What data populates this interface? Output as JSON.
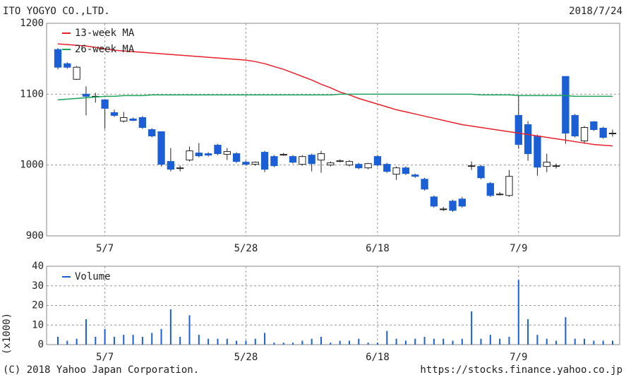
{
  "header": {
    "title": "ITO YOGYO CO.,LTD.",
    "date": "2018/7/24"
  },
  "footer": {
    "copyright": "(C) 2018 Yahoo Japan Corporation.",
    "url": "https://stocks.finance.yahoo.co.jp"
  },
  "chart_data": [
    {
      "type": "candlestick",
      "categories": [
        null,
        null,
        null,
        null,
        null,
        "5/7",
        null,
        null,
        null,
        null,
        null,
        null,
        null,
        null,
        null,
        null,
        null,
        null,
        null,
        null,
        "5/28",
        null,
        null,
        null,
        null,
        null,
        null,
        null,
        null,
        null,
        null,
        null,
        null,
        null,
        "6/18",
        null,
        null,
        null,
        null,
        null,
        null,
        null,
        null,
        null,
        null,
        null,
        null,
        null,
        null,
        "7/9",
        null,
        null,
        null,
        null,
        null,
        null,
        null,
        null,
        null,
        null
      ],
      "open": [
        1163,
        1143,
        1121,
        1100,
        1096,
        1092,
        1074,
        1062,
        1065,
        1067,
        1050,
        1047,
        1005,
        996,
        1007,
        1017,
        1016,
        1028,
        1015,
        1016,
        1004,
        1001,
        1018,
        1012,
        1015,
        1012,
        1001,
        1014,
        1007,
        1000,
        1006,
        1000,
        1001,
        996,
        1012,
        1001,
        987,
        996,
        986,
        980,
        955,
        938,
        949,
        952,
        999,
        998,
        974,
        959,
        957,
        1070,
        1057,
        1041,
        998,
        999,
        1125,
        1070,
        1034,
        1061,
        1052,
        1045
      ],
      "high": [
        1165,
        1145,
        1140,
        1111,
        1102,
        1093,
        1078,
        1075,
        1067,
        1069,
        1052,
        1047,
        1024,
        999,
        1026,
        1031,
        1018,
        1030,
        1024,
        1018,
        1006,
        1005,
        1020,
        1014,
        1017,
        1014,
        1014,
        1016,
        1020,
        1005,
        1008,
        1007,
        1003,
        1003,
        1014,
        1003,
        998,
        998,
        988,
        982,
        957,
        941,
        951,
        955,
        1005,
        1000,
        976,
        962,
        993,
        1099,
        1062,
        1043,
        1016,
        1002,
        1125,
        1072,
        1055,
        1062,
        1054,
        1050
      ],
      "low": [
        1135,
        1136,
        1120,
        1070,
        1088,
        1051,
        1068,
        1060,
        1062,
        1051,
        1039,
        998,
        991,
        991,
        1005,
        1011,
        1012,
        1014,
        1007,
        1003,
        999,
        999,
        990,
        997,
        1013,
        1002,
        999,
        991,
        989,
        998,
        1004,
        998,
        994,
        994,
        998,
        989,
        979,
        986,
        982,
        964,
        940,
        935,
        934,
        940,
        993,
        980,
        955,
        957,
        955,
        1023,
        1006,
        985,
        990,
        995,
        1030,
        1039,
        1030,
        1048,
        1037,
        1040
      ],
      "close": [
        1138,
        1138,
        1138,
        1097,
        1097,
        1080,
        1070,
        1067,
        1063,
        1053,
        1041,
        1001,
        994,
        996,
        1020,
        1013,
        1014,
        1016,
        1019,
        1005,
        1001,
        1004,
        994,
        999,
        1015,
        1004,
        1012,
        1002,
        1016,
        1003,
        1006,
        1005,
        996,
        1002,
        1000,
        991,
        996,
        988,
        984,
        966,
        942,
        938,
        936,
        942,
        999,
        982,
        957,
        959,
        984,
        1029,
        1016,
        997,
        1004,
        999,
        1045,
        1041,
        1053,
        1050,
        1039,
        1045
      ],
      "up_color": "#ffffff",
      "down_color": "#1a5fd6",
      "series": [
        {
          "name": "13-week MA",
          "color": "#e8202a",
          "values": [
            1171,
            1170,
            1169,
            1168,
            1166,
            1164,
            1162,
            1161,
            1160,
            1159,
            1158,
            1157,
            1156,
            1155,
            1154,
            1153,
            1152,
            1151,
            1150,
            1149,
            1148,
            1146,
            1143,
            1139,
            1135,
            1130,
            1125,
            1120,
            1114,
            1109,
            1103,
            1099,
            1094,
            1090,
            1086,
            1082,
            1078,
            1075,
            1072,
            1069,
            1066,
            1063,
            1060,
            1057,
            1055,
            1053,
            1051,
            1049,
            1047,
            1045,
            1043,
            1041,
            1039,
            1037,
            1035,
            1033,
            1031,
            1029,
            1028,
            1027
          ]
        },
        {
          "name": "26-week MA",
          "color": "#1aa35a",
          "values": [
            1092,
            1093,
            1094,
            1095,
            1096,
            1097,
            1097,
            1098,
            1098,
            1098,
            1099,
            1099,
            1099,
            1099,
            1099,
            1099,
            1099,
            1099,
            1099,
            1099,
            1099,
            1099,
            1099,
            1099,
            1099,
            1099,
            1099,
            1099,
            1099,
            1099,
            1100,
            1100,
            1100,
            1100,
            1100,
            1100,
            1100,
            1100,
            1100,
            1100,
            1100,
            1100,
            1100,
            1100,
            1100,
            1099,
            1099,
            1099,
            1099,
            1098,
            1098,
            1098,
            1098,
            1098,
            1098,
            1097,
            1097,
            1097,
            1097,
            1097
          ]
        }
      ],
      "ylim": [
        900,
        1200
      ],
      "yticks": [
        900,
        1000,
        1100,
        1200
      ],
      "grid": true
    },
    {
      "type": "bar",
      "categories": [
        null,
        null,
        null,
        null,
        null,
        "5/7",
        null,
        null,
        null,
        null,
        null,
        null,
        null,
        null,
        null,
        null,
        null,
        null,
        null,
        null,
        "5/28",
        null,
        null,
        null,
        null,
        null,
        null,
        null,
        null,
        null,
        null,
        null,
        null,
        null,
        "6/18",
        null,
        null,
        null,
        null,
        null,
        null,
        null,
        null,
        null,
        null,
        null,
        null,
        null,
        null,
        "7/9",
        null,
        null,
        null,
        null,
        null,
        null,
        null,
        null,
        null,
        null
      ],
      "y_label": "(x1000)",
      "series": [
        {
          "name": "Volume",
          "color": "#1a5fd6",
          "values": [
            4,
            2,
            3,
            13,
            4,
            8,
            4,
            5,
            5,
            4,
            6,
            8,
            18,
            4,
            15,
            5,
            3,
            3,
            3,
            2,
            2,
            3,
            6,
            1,
            1,
            1,
            2,
            3,
            4,
            1,
            2,
            2,
            3,
            1,
            1,
            7,
            3,
            2,
            3,
            4,
            3,
            3,
            2,
            3,
            17,
            3,
            5,
            3,
            4,
            33,
            13,
            5,
            3,
            2,
            14,
            3,
            3,
            2,
            2,
            2
          ]
        }
      ],
      "ylim": [
        0,
        40
      ],
      "yticks": [
        0,
        10,
        20,
        30,
        40
      ],
      "grid": true
    }
  ]
}
